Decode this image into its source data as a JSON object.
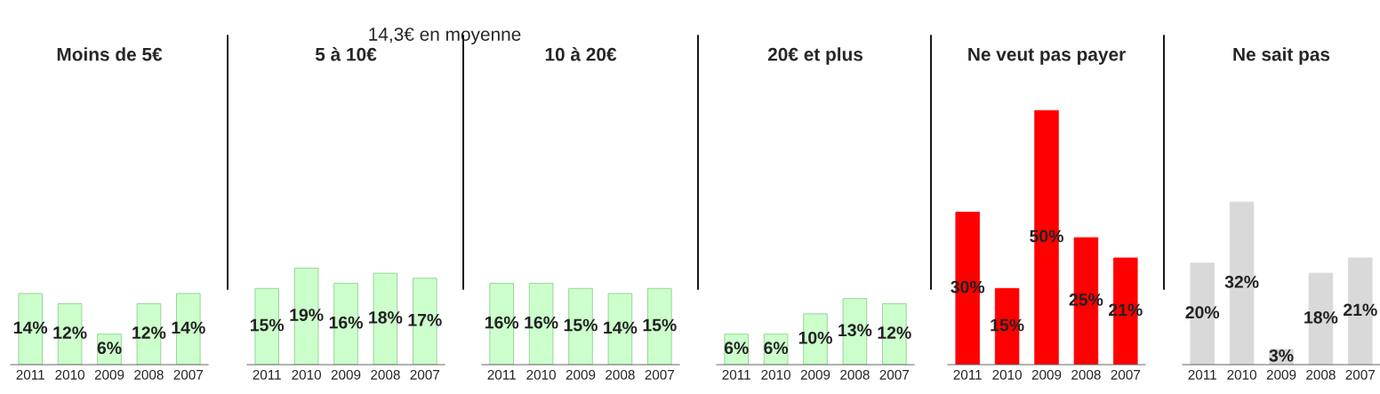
{
  "chart_data": [
    {
      "type": "bar",
      "title": "Moins de 5€",
      "categories": [
        "2011",
        "2010",
        "2009",
        "2008",
        "2007"
      ],
      "values": [
        14,
        12,
        6,
        12,
        14
      ],
      "value_labels": [
        "14%",
        "12%",
        "6%",
        "12%",
        "14%"
      ],
      "color": "#ccffcc",
      "tick_labels": "x"
    },
    {
      "type": "bar",
      "title": "5 à 10€",
      "categories": [
        "2011",
        "2010",
        "2009",
        "2008",
        "2007"
      ],
      "values": [
        15,
        19,
        16,
        18,
        17
      ],
      "value_labels": [
        "15%",
        "19%",
        "16%",
        "18%",
        "17%"
      ],
      "color": "#ccffcc",
      "tick_labels": "x",
      "annotations": [
        "14,3€ en moyenne"
      ]
    },
    {
      "type": "bar",
      "title": "10 à 20€",
      "categories": [
        "2011",
        "2010",
        "2009",
        "2008",
        "2007"
      ],
      "values": [
        16,
        16,
        15,
        14,
        15
      ],
      "value_labels": [
        "16%",
        "16%",
        "15%",
        "14%",
        "15%"
      ],
      "color": "#ccffcc",
      "tick_labels": "x"
    },
    {
      "type": "bar",
      "title": "20€ et plus",
      "categories": [
        "2011",
        "2010",
        "2009",
        "2008",
        "2007"
      ],
      "values": [
        6,
        6,
        10,
        13,
        12
      ],
      "value_labels": [
        "6%",
        "6%",
        "10%",
        "13%",
        "12%"
      ],
      "color": "#ccffcc",
      "tick_labels": "x"
    },
    {
      "type": "bar",
      "title": "Ne veut pas payer",
      "categories": [
        "2011",
        "2010",
        "2009",
        "2008",
        "2007"
      ],
      "values": [
        30,
        15,
        50,
        25,
        21
      ],
      "value_labels": [
        "30%",
        "15%",
        "50%",
        "25%",
        "21%"
      ],
      "color": "#ff0000",
      "tick_labels": "x"
    },
    {
      "type": "bar",
      "title": "Ne sait pas",
      "categories": [
        "2011",
        "2010",
        "2009",
        "2008",
        "2007"
      ],
      "values": [
        20,
        32,
        3,
        18,
        21
      ],
      "value_labels": [
        "20%",
        "32%",
        "3%",
        "18%",
        "21%"
      ],
      "color": "#d9d9d9",
      "tick_labels": "x"
    }
  ]
}
